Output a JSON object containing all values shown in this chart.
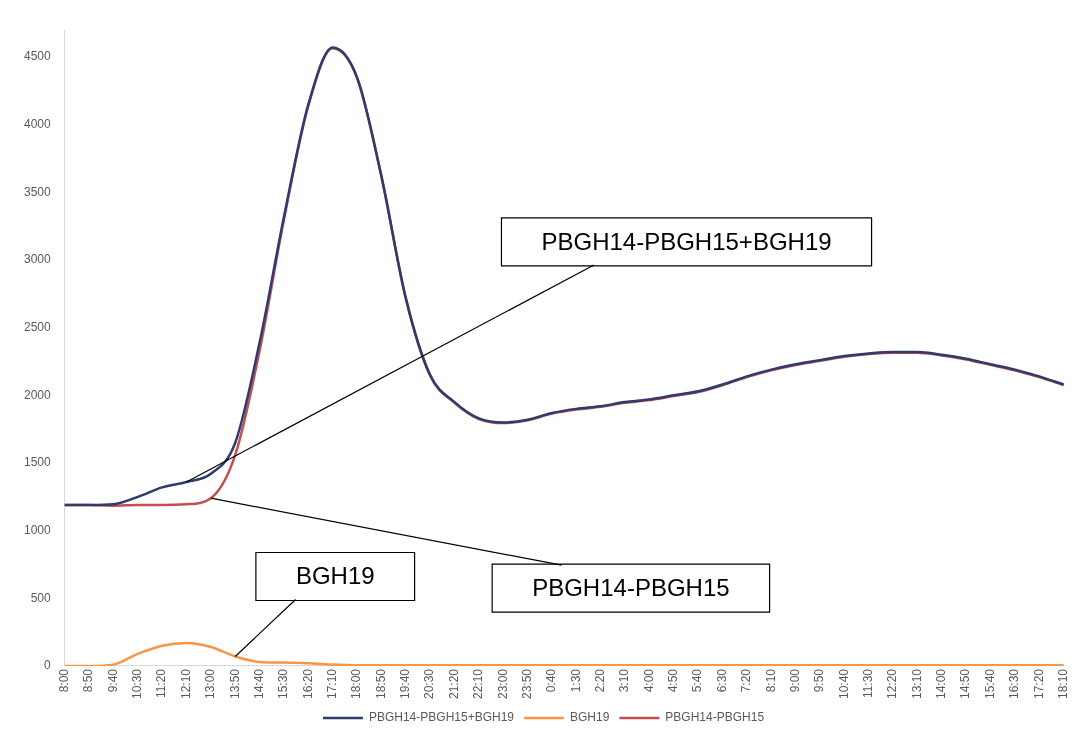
{
  "chart_data": {
    "type": "line",
    "categories": [
      "8:00",
      "8:50",
      "9:40",
      "10:30",
      "11:20",
      "12:10",
      "13:00",
      "13:50",
      "14:40",
      "15:30",
      "16:20",
      "17:10",
      "18:00",
      "18:50",
      "19:40",
      "20:30",
      "21:20",
      "22:10",
      "23:00",
      "23:50",
      "0:40",
      "1:30",
      "2:20",
      "3:10",
      "4:00",
      "4:50",
      "5:40",
      "6:30",
      "7:20",
      "8:10",
      "9:00",
      "9:50",
      "10:40",
      "11:30",
      "12:20",
      "13:10",
      "14:00",
      "14:50",
      "15:40",
      "16:30",
      "17:20",
      "18:10"
    ],
    "series": [
      {
        "name": "PBGH14-PBGH15",
        "color": "#c0504d",
        "values": [
          1190,
          1190,
          1185,
          1190,
          1190,
          1195,
          1240,
          1560,
          2330,
          3300,
          4140,
          4565,
          4345,
          3615,
          2715,
          2145,
          1945,
          1825,
          1795,
          1815,
          1865,
          1895,
          1915,
          1945,
          1965,
          1995,
          2025,
          2075,
          2135,
          2185,
          2225,
          2255,
          2285,
          2305,
          2315,
          2315,
          2295,
          2265,
          2225,
          2185,
          2135,
          2075
        ]
      },
      {
        "name": "BGH19",
        "color": "#f79646",
        "values": [
          0,
          0,
          10,
          90,
          150,
          170,
          140,
          70,
          30,
          25,
          20,
          10,
          5,
          5,
          5,
          5,
          5,
          5,
          5,
          5,
          5,
          5,
          5,
          5,
          5,
          5,
          5,
          5,
          5,
          5,
          5,
          5,
          5,
          5,
          5,
          5,
          5,
          5,
          5,
          5,
          5,
          5
        ]
      },
      {
        "name": "PBGH14-PBGH15+BGH19",
        "color": "#2e3b6e",
        "values": [
          1190,
          1190,
          1195,
          1250,
          1320,
          1360,
          1420,
          1650,
          2390,
          3320,
          4150,
          4570,
          4350,
          3620,
          2720,
          2150,
          1950,
          1830,
          1800,
          1820,
          1870,
          1900,
          1920,
          1950,
          1970,
          2000,
          2030,
          2080,
          2140,
          2190,
          2230,
          2260,
          2290,
          2310,
          2320,
          2320,
          2300,
          2270,
          2230,
          2190,
          2140,
          2080
        ]
      }
    ],
    "ylim": [
      0,
      4700
    ],
    "yticks": [
      0,
      500,
      1000,
      1500,
      2000,
      2500,
      3000,
      3500,
      4000,
      4500
    ],
    "legend": "bottom",
    "marker": "none",
    "line_style": "solid",
    "annotations": [
      {
        "text": "PBGH14-PBGH15+BGH19",
        "x": "12:10",
        "y": 1360
      },
      {
        "text": "PBGH14-PBGH15",
        "x": "13:00",
        "y": 1240
      },
      {
        "text": "BGH19",
        "x": "13:50",
        "y": 70
      }
    ]
  }
}
